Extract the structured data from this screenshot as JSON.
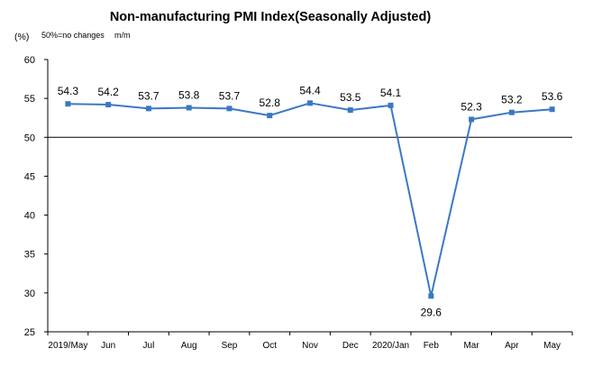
{
  "chart_data": {
    "type": "line",
    "title": "Non-manufacturing PMI Index(Seasonally Adjusted)",
    "y_unit": "(%)",
    "note": "50%=no changes",
    "note_period": "m/m",
    "categories": [
      "2019/May",
      "Jun",
      "Jul",
      "Aug",
      "Sep",
      "Oct",
      "Nov",
      "Dec",
      "2020/Jan",
      "Feb",
      "Mar",
      "Apr",
      "May"
    ],
    "values": [
      54.3,
      54.2,
      53.7,
      53.8,
      53.7,
      52.8,
      54.4,
      53.5,
      54.1,
      29.6,
      52.3,
      53.2,
      53.6
    ],
    "data_labels": [
      "54.3",
      "54.2",
      "53.7",
      "53.8",
      "53.7",
      "52.8",
      "54.4",
      "53.5",
      "54.1",
      "29.6",
      "52.3",
      "53.2",
      "53.6"
    ],
    "ylim": [
      25,
      60
    ],
    "yticks": [
      "60",
      "55",
      "50",
      "45",
      "40",
      "35",
      "30",
      "25"
    ],
    "ytick_values": [
      60,
      55,
      50,
      45,
      40,
      35,
      30,
      25
    ],
    "reference_line": 50,
    "line_color": "#3b78c4",
    "axis_color": "#000000",
    "grid": false
  }
}
